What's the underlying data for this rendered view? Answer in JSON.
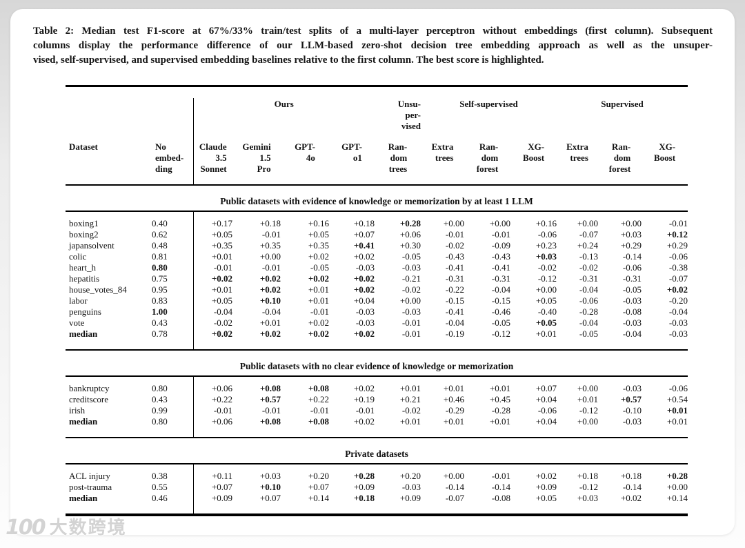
{
  "caption": {
    "lines": [
      "Table 2: Median test F1-score at 67%/33% train/test splits of a multi-layer perceptron without embeddings (first column). Subsequent",
      "columns display the performance difference of our LLM-based zero-shot decision tree embedding approach as well as the unsuper-",
      "vised, self-supervised, and supervised embedding baselines relative to the first column. The best score is highlighted."
    ]
  },
  "table": {
    "group_headers": [
      {
        "label": "",
        "span": 2
      },
      {
        "label": "Ours",
        "span": 4
      },
      {
        "label": "Unsu-\nper-\nvised",
        "span": 1
      },
      {
        "label": "Self-supervised",
        "span": 3
      },
      {
        "label": "Supervised",
        "span": 3
      }
    ],
    "columns": [
      "Dataset",
      "No\nembed-\nding",
      "Claude\n3.5\nSonnet",
      "Gemini\n1.5\nPro",
      "GPT-\n4o",
      "GPT-\no1",
      "Ran-\ndom\ntrees",
      "Extra\ntrees",
      "Ran-\ndom\nforest",
      "XG-\nBoost",
      "Extra\ntrees",
      "Ran-\ndom\nforest",
      "XG-\nBoost"
    ],
    "sections": [
      {
        "title": "Public datasets with evidence of knowledge or memorization by at least 1 LLM",
        "rows": [
          {
            "dataset": "boxing1",
            "dataset_bold": false,
            "values": [
              "0.40",
              "+0.17",
              "+0.18",
              "+0.16",
              "+0.18",
              "+0.28",
              "+0.00",
              "+0.00",
              "+0.16",
              "+0.00",
              "+0.00",
              "-0.01"
            ],
            "bold_indices": [
              5
            ]
          },
          {
            "dataset": "boxing2",
            "dataset_bold": false,
            "values": [
              "0.62",
              "+0.05",
              "-0.01",
              "+0.05",
              "+0.07",
              "+0.06",
              "-0.01",
              "-0.01",
              "-0.06",
              "-0.07",
              "+0.03",
              "+0.12"
            ],
            "bold_indices": [
              11
            ]
          },
          {
            "dataset": "japansolvent",
            "dataset_bold": false,
            "values": [
              "0.48",
              "+0.35",
              "+0.35",
              "+0.35",
              "+0.41",
              "+0.30",
              "-0.02",
              "-0.09",
              "+0.23",
              "+0.24",
              "+0.29",
              "+0.29"
            ],
            "bold_indices": [
              4
            ]
          },
          {
            "dataset": "colic",
            "dataset_bold": false,
            "values": [
              "0.81",
              "+0.01",
              "+0.00",
              "+0.02",
              "+0.02",
              "-0.05",
              "-0.43",
              "-0.43",
              "+0.03",
              "-0.13",
              "-0.14",
              "-0.06"
            ],
            "bold_indices": [
              8
            ]
          },
          {
            "dataset": "heart_h",
            "dataset_bold": false,
            "values": [
              "0.80",
              "-0.01",
              "-0.01",
              "-0.05",
              "-0.03",
              "-0.03",
              "-0.41",
              "-0.41",
              "-0.02",
              "-0.02",
              "-0.06",
              "-0.38"
            ],
            "bold_indices": [
              0
            ]
          },
          {
            "dataset": "hepatitis",
            "dataset_bold": false,
            "values": [
              "0.75",
              "+0.02",
              "+0.02",
              "+0.02",
              "+0.02",
              "-0.21",
              "-0.31",
              "-0.31",
              "-0.12",
              "-0.31",
              "-0.31",
              "-0.07"
            ],
            "bold_indices": [
              1,
              2,
              3,
              4
            ]
          },
          {
            "dataset": "house_votes_84",
            "dataset_bold": false,
            "values": [
              "0.95",
              "+0.01",
              "+0.02",
              "+0.01",
              "+0.02",
              "-0.02",
              "-0.22",
              "-0.04",
              "+0.00",
              "-0.04",
              "-0.05",
              "+0.02"
            ],
            "bold_indices": [
              2,
              4,
              11
            ]
          },
          {
            "dataset": "labor",
            "dataset_bold": false,
            "values": [
              "0.83",
              "+0.05",
              "+0.10",
              "+0.01",
              "+0.04",
              "+0.00",
              "-0.15",
              "-0.15",
              "+0.05",
              "-0.06",
              "-0.03",
              "-0.20"
            ],
            "bold_indices": [
              2
            ]
          },
          {
            "dataset": "penguins",
            "dataset_bold": false,
            "values": [
              "1.00",
              "-0.04",
              "-0.04",
              "-0.01",
              "-0.03",
              "-0.03",
              "-0.41",
              "-0.46",
              "-0.40",
              "-0.28",
              "-0.08",
              "-0.04"
            ],
            "bold_indices": [
              0
            ]
          },
          {
            "dataset": "vote",
            "dataset_bold": false,
            "values": [
              "0.43",
              "-0.02",
              "+0.01",
              "+0.02",
              "-0.03",
              "-0.01",
              "-0.04",
              "-0.05",
              "+0.05",
              "-0.04",
              "-0.03",
              "-0.03"
            ],
            "bold_indices": [
              8
            ]
          },
          {
            "dataset": "median",
            "dataset_bold": true,
            "values": [
              "0.78",
              "+0.02",
              "+0.02",
              "+0.02",
              "+0.02",
              "-0.01",
              "-0.19",
              "-0.12",
              "+0.01",
              "-0.05",
              "-0.04",
              "-0.03"
            ],
            "bold_indices": [
              1,
              2,
              3,
              4
            ]
          }
        ]
      },
      {
        "title": "Public datasets with no clear evidence of knowledge or memorization",
        "rows": [
          {
            "dataset": "bankruptcy",
            "dataset_bold": false,
            "values": [
              "0.80",
              "+0.06",
              "+0.08",
              "+0.08",
              "+0.02",
              "+0.01",
              "+0.01",
              "+0.01",
              "+0.07",
              "+0.00",
              "-0.03",
              "-0.06"
            ],
            "bold_indices": [
              2,
              3
            ]
          },
          {
            "dataset": "creditscore",
            "dataset_bold": false,
            "values": [
              "0.43",
              "+0.22",
              "+0.57",
              "+0.22",
              "+0.19",
              "+0.21",
              "+0.46",
              "+0.45",
              "+0.04",
              "+0.01",
              "+0.57",
              "+0.54"
            ],
            "bold_indices": [
              2,
              10
            ]
          },
          {
            "dataset": "irish",
            "dataset_bold": false,
            "values": [
              "0.99",
              "-0.01",
              "-0.01",
              "-0.01",
              "-0.01",
              "-0.02",
              "-0.29",
              "-0.28",
              "-0.06",
              "-0.12",
              "-0.10",
              "+0.01"
            ],
            "bold_indices": [
              11
            ]
          },
          {
            "dataset": "median",
            "dataset_bold": true,
            "values": [
              "0.80",
              "+0.06",
              "+0.08",
              "+0.08",
              "+0.02",
              "+0.01",
              "+0.01",
              "+0.01",
              "+0.04",
              "+0.00",
              "-0.03",
              "+0.01"
            ],
            "bold_indices": [
              2,
              3
            ]
          }
        ]
      },
      {
        "title": "Private datasets",
        "rows": [
          {
            "dataset": "ACL injury",
            "dataset_bold": false,
            "values": [
              "0.38",
              "+0.11",
              "+0.03",
              "+0.20",
              "+0.28",
              "+0.20",
              "+0.00",
              "-0.01",
              "+0.02",
              "+0.18",
              "+0.18",
              "+0.28"
            ],
            "bold_indices": [
              4,
              11
            ]
          },
          {
            "dataset": "post-trauma",
            "dataset_bold": false,
            "values": [
              "0.55",
              "+0.07",
              "+0.10",
              "+0.07",
              "+0.09",
              "-0.03",
              "-0.14",
              "-0.14",
              "+0.09",
              "-0.12",
              "-0.14",
              "+0.00"
            ],
            "bold_indices": [
              2
            ]
          },
          {
            "dataset": "median",
            "dataset_bold": true,
            "values": [
              "0.46",
              "+0.09",
              "+0.07",
              "+0.14",
              "+0.18",
              "+0.09",
              "-0.07",
              "-0.08",
              "+0.05",
              "+0.03",
              "+0.02",
              "+0.14"
            ],
            "bold_indices": [
              4
            ]
          }
        ]
      }
    ]
  },
  "watermark": {
    "logo_number": "100",
    "text": "大数跨境"
  },
  "colors": {
    "text": "#111111",
    "card_bg": "#ffffff",
    "page_bg": "#ececec",
    "rule": "#000000",
    "watermark": "#cfcfcf"
  }
}
